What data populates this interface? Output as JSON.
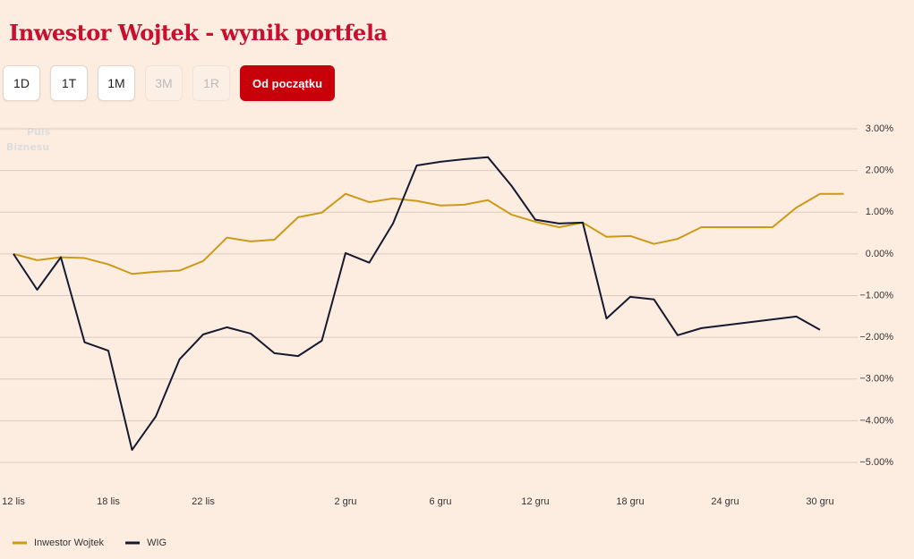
{
  "chart_data": {
    "type": "line",
    "title": "Inwestor Wojtek - wynik portfela",
    "watermark": [
      "Puls",
      "Biznesu"
    ],
    "categories": [
      "12 lis",
      null,
      null,
      null,
      "18 lis",
      null,
      null,
      null,
      "22 lis",
      null,
      null,
      null,
      null,
      null,
      "2 gru",
      null,
      null,
      null,
      "6 gru",
      null,
      null,
      null,
      "12 gru",
      null,
      null,
      null,
      "18 gru",
      null,
      null,
      null,
      "24 gru",
      null,
      null,
      null,
      "30 gru",
      null
    ],
    "series": [
      {
        "name": "Inwestor Wojtek",
        "color": "#cc9a18",
        "values": [
          0,
          -0.15,
          -0.08,
          -0.1,
          -0.25,
          -0.48,
          -0.43,
          -0.4,
          -0.17,
          0.39,
          0.3,
          0.34,
          0.88,
          0.99,
          1.44,
          1.24,
          1.33,
          1.27,
          1.16,
          1.18,
          1.29,
          0.94,
          0.77,
          0.64,
          0.75,
          0.41,
          0.43,
          0.24,
          0.36,
          0.64,
          0.64,
          0.64,
          0.64,
          1.11,
          1.44,
          1.44
        ]
      },
      {
        "name": "WIG",
        "color": "#151a30",
        "values": [
          0,
          -0.86,
          -0.08,
          -2.12,
          -2.32,
          -4.7,
          -3.9,
          -2.53,
          -1.93,
          -1.76,
          -1.91,
          -2.38,
          -2.45,
          -2.08,
          0.02,
          -0.21,
          0.73,
          2.12,
          2.21,
          2.27,
          2.32,
          1.63,
          0.82,
          0.73,
          0.75,
          -1.55,
          -1.03,
          -1.09,
          -1.95,
          -1.78,
          -1.71,
          -1.64,
          -1.57,
          -1.5,
          -1.82,
          null
        ]
      }
    ],
    "ylim": [
      -5.6,
      3.3
    ],
    "yticks": [
      {
        "value": 3,
        "label": "3.00%"
      },
      {
        "value": 2,
        "label": "2.00%"
      },
      {
        "value": 1,
        "label": "1.00%"
      },
      {
        "value": 0,
        "label": "0.00%"
      },
      {
        "value": -1,
        "label": "−1.00%"
      },
      {
        "value": -2,
        "label": "−2.00%"
      },
      {
        "value": -3,
        "label": "−3.00%"
      },
      {
        "value": -4,
        "label": "−4.00%"
      },
      {
        "value": -5,
        "label": "−5.00%"
      }
    ],
    "grid": true,
    "y_axis_side": "right",
    "legend": "bottom-left"
  },
  "ui": {
    "buttons": [
      {
        "label": "1D",
        "state": "normal"
      },
      {
        "label": "1T",
        "state": "normal"
      },
      {
        "label": "1M",
        "state": "normal"
      },
      {
        "label": "3M",
        "state": "disabled"
      },
      {
        "label": "1R",
        "state": "disabled"
      },
      {
        "label": "Od początku",
        "state": "active"
      }
    ]
  }
}
